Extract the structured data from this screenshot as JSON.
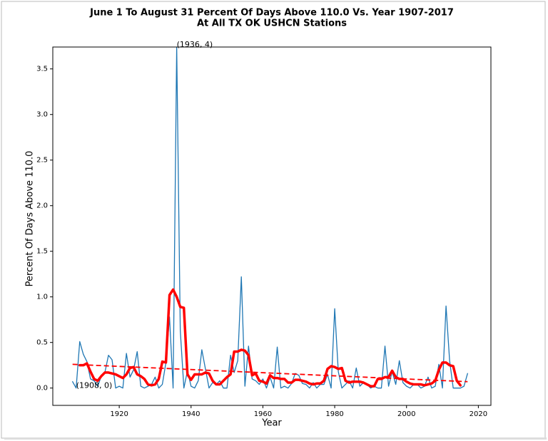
{
  "chart_data": {
    "type": "line",
    "title": "June 1 To August 31 Percent Of Days Above 110.0 Vs. Year 1907-2017",
    "subtitle": "At All TX OK USHCN Stations",
    "xlabel": "Year",
    "ylabel": "Percent Of Days Above 110.0",
    "xlim": [
      1901.5,
      2023.5
    ],
    "ylim": [
      -0.19,
      3.74
    ],
    "xticks": [
      1920,
      1940,
      1960,
      1980,
      2000,
      2020
    ],
    "yticks": [
      {
        "value": 0,
        "label": "0.0"
      },
      {
        "value": 0.5,
        "label": "0.5"
      },
      {
        "value": 1,
        "label": "1.0"
      },
      {
        "value": 1.5,
        "label": "1.5"
      },
      {
        "value": 2,
        "label": "2.0"
      },
      {
        "value": 2.5,
        "label": "2.5"
      },
      {
        "value": 3,
        "label": "3.0"
      },
      {
        "value": 3.5,
        "label": "3.5"
      }
    ],
    "series": [
      {
        "color": "#1f77b4",
        "linewidth": 1.3,
        "dashed": false,
        "x": [
          1907,
          1908,
          1909,
          1910,
          1911,
          1912,
          1913,
          1914,
          1915,
          1916,
          1917,
          1918,
          1919,
          1920,
          1921,
          1922,
          1923,
          1924,
          1925,
          1926,
          1927,
          1928,
          1929,
          1930,
          1931,
          1932,
          1933,
          1934,
          1935,
          1936,
          1937,
          1938,
          1939,
          1940,
          1941,
          1942,
          1943,
          1944,
          1945,
          1946,
          1947,
          1948,
          1949,
          1950,
          1951,
          1952,
          1953,
          1954,
          1955,
          1956,
          1957,
          1958,
          1959,
          1960,
          1961,
          1962,
          1963,
          1964,
          1965,
          1966,
          1967,
          1968,
          1969,
          1970,
          1971,
          1972,
          1973,
          1974,
          1975,
          1976,
          1977,
          1978,
          1979,
          1980,
          1981,
          1982,
          1983,
          1984,
          1985,
          1986,
          1987,
          1988,
          1989,
          1990,
          1991,
          1992,
          1993,
          1994,
          1995,
          1996,
          1997,
          1998,
          1999,
          2000,
          2001,
          2002,
          2003,
          2004,
          2005,
          2006,
          2007,
          2008,
          2009,
          2010,
          2011,
          2012,
          2013,
          2014,
          2015,
          2016,
          2017
        ],
        "values": [
          0.07,
          0,
          0.51,
          0.37,
          0.29,
          0.1,
          0.08,
          0.02,
          0.13,
          0.17,
          0.36,
          0.31,
          0,
          0.02,
          0,
          0.38,
          0.12,
          0.2,
          0.4,
          0.02,
          0,
          0.02,
          0.04,
          0.12,
          0,
          0.04,
          0.28,
          0.78,
          0,
          3.74,
          0.63,
          0,
          0.19,
          0.02,
          0,
          0.08,
          0.42,
          0.21,
          0,
          0.06,
          0.04,
          0.08,
          0,
          0,
          0.36,
          0.17,
          0.3,
          1.22,
          0.02,
          0.46,
          0.1,
          0.08,
          0.04,
          0.1,
          0,
          0.12,
          0,
          0.45,
          0,
          0.02,
          0,
          0.05,
          0.16,
          0.14,
          0.05,
          0.04,
          0,
          0.06,
          0,
          0.04,
          0.04,
          0.15,
          0,
          0.87,
          0.18,
          0,
          0.04,
          0.08,
          0,
          0.22,
          0.02,
          0.06,
          0.04,
          0,
          0.02,
          0,
          0,
          0.46,
          0.02,
          0.18,
          0.04,
          0.3,
          0.06,
          0.02,
          0,
          0.04,
          0.04,
          0,
          0.02,
          0.12,
          0,
          0.02,
          0.26,
          0,
          0.9,
          0.3,
          0,
          0,
          0,
          0.02,
          0.16
        ]
      },
      {
        "color": "#ff0000",
        "linewidth": 3.5,
        "dashed": false,
        "x": [
          1909,
          1910,
          1911,
          1912,
          1913,
          1914,
          1915,
          1916,
          1917,
          1918,
          1919,
          1920,
          1921,
          1922,
          1923,
          1924,
          1925,
          1926,
          1927,
          1928,
          1929,
          1930,
          1931,
          1932,
          1933,
          1934,
          1935,
          1936,
          1937,
          1938,
          1939,
          1940,
          1941,
          1942,
          1943,
          1944,
          1945,
          1946,
          1947,
          1948,
          1949,
          1950,
          1951,
          1952,
          1953,
          1954,
          1955,
          1956,
          1957,
          1958,
          1959,
          1960,
          1961,
          1962,
          1963,
          1964,
          1965,
          1966,
          1967,
          1968,
          1969,
          1970,
          1971,
          1972,
          1973,
          1974,
          1975,
          1976,
          1977,
          1978,
          1979,
          1980,
          1981,
          1982,
          1983,
          1984,
          1985,
          1986,
          1987,
          1988,
          1989,
          1990,
          1991,
          1992,
          1993,
          1994,
          1995,
          1996,
          1997,
          1998,
          1999,
          2000,
          2001,
          2002,
          2003,
          2004,
          2005,
          2006,
          2007,
          2008,
          2009,
          2010,
          2011,
          2012,
          2013,
          2014,
          2015
        ],
        "values": [
          0.25,
          0.25,
          0.27,
          0.18,
          0.1,
          0.08,
          0.13,
          0.17,
          0.17,
          0.16,
          0.15,
          0.13,
          0.11,
          0.15,
          0.22,
          0.23,
          0.15,
          0.13,
          0.1,
          0.04,
          0.03,
          0.04,
          0.1,
          0.29,
          0.28,
          1.02,
          1.08,
          1,
          0.89,
          0.88,
          0.15,
          0.09,
          0.15,
          0.15,
          0.15,
          0.17,
          0.16,
          0.08,
          0.04,
          0.04,
          0.08,
          0.12,
          0.15,
          0.4,
          0.4,
          0.42,
          0.41,
          0.36,
          0.14,
          0.16,
          0.08,
          0.07,
          0.05,
          0.14,
          0.11,
          0.11,
          0.1,
          0.1,
          0.06,
          0.06,
          0.09,
          0.09,
          0.08,
          0.07,
          0.05,
          0.04,
          0.05,
          0.05,
          0.08,
          0.21,
          0.24,
          0.23,
          0.21,
          0.22,
          0.08,
          0.06,
          0.07,
          0.07,
          0.07,
          0.06,
          0.04,
          0.02,
          0.02,
          0.1,
          0.1,
          0.12,
          0.12,
          0.19,
          0.12,
          0.1,
          0.1,
          0.07,
          0.05,
          0.04,
          0.04,
          0.04,
          0.03,
          0.04,
          0.05,
          0.08,
          0.2,
          0.28,
          0.28,
          0.25,
          0.24,
          0.08,
          0.03
        ]
      },
      {
        "color": "#ff0000",
        "linewidth": 1.8,
        "dashed": true,
        "x": [
          1907,
          2017
        ],
        "values": [
          0.26,
          0.07
        ]
      }
    ],
    "annotations": [
      {
        "text": "(1936, 4)",
        "x": 1936,
        "y": 3.74
      },
      {
        "text": "(1908, 0)",
        "x": 1908,
        "y": 0
      }
    ]
  }
}
